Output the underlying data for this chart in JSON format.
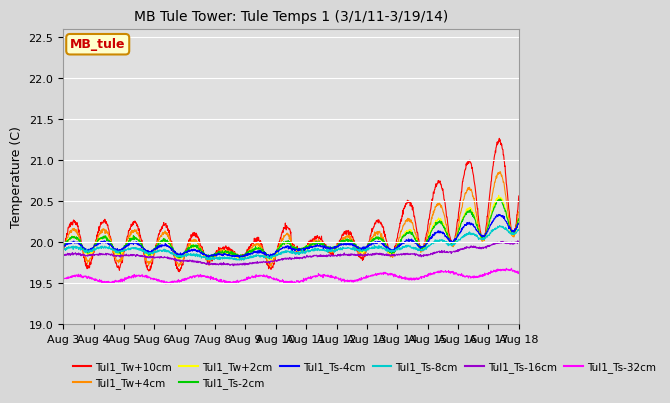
{
  "title": "MB Tule Tower: Tule Temps 1 (3/1/11-3/19/14)",
  "ylabel": "Temperature (C)",
  "ylim": [
    19.0,
    22.6
  ],
  "yticks": [
    19.0,
    19.5,
    20.0,
    20.5,
    21.0,
    21.5,
    22.0,
    22.5
  ],
  "xlabel_dates": [
    "Aug 3",
    "Aug 4",
    "Aug 5",
    "Aug 6",
    "Aug 7",
    "Aug 8",
    "Aug 9",
    "Aug 10",
    "Aug 11",
    "Aug 12",
    "Aug 13",
    "Aug 14",
    "Aug 15",
    "Aug 16",
    "Aug 17",
    "Aug 18"
  ],
  "n_points": 1500,
  "series": [
    {
      "label": "Tul1_Tw+10cm",
      "color": "#ff0000"
    },
    {
      "label": "Tul1_Tw+4cm",
      "color": "#ff8c00"
    },
    {
      "label": "Tul1_Tw+2cm",
      "color": "#ffff00"
    },
    {
      "label": "Tul1_Ts-2cm",
      "color": "#00cc00"
    },
    {
      "label": "Tul1_Ts-4cm",
      "color": "#0000ff"
    },
    {
      "label": "Tul1_Ts-8cm",
      "color": "#00cccc"
    },
    {
      "label": "Tul1_Ts-16cm",
      "color": "#9900cc"
    },
    {
      "label": "Tul1_Ts-32cm",
      "color": "#ff00ff"
    }
  ],
  "legend_box_color": "#ffffcc",
  "legend_box_edge": "#cc8800",
  "legend_label": "MB_tule",
  "background_color": "#d8d8d8",
  "plot_bg_color": "#e0e0e0",
  "grid_color": "#ffffff"
}
